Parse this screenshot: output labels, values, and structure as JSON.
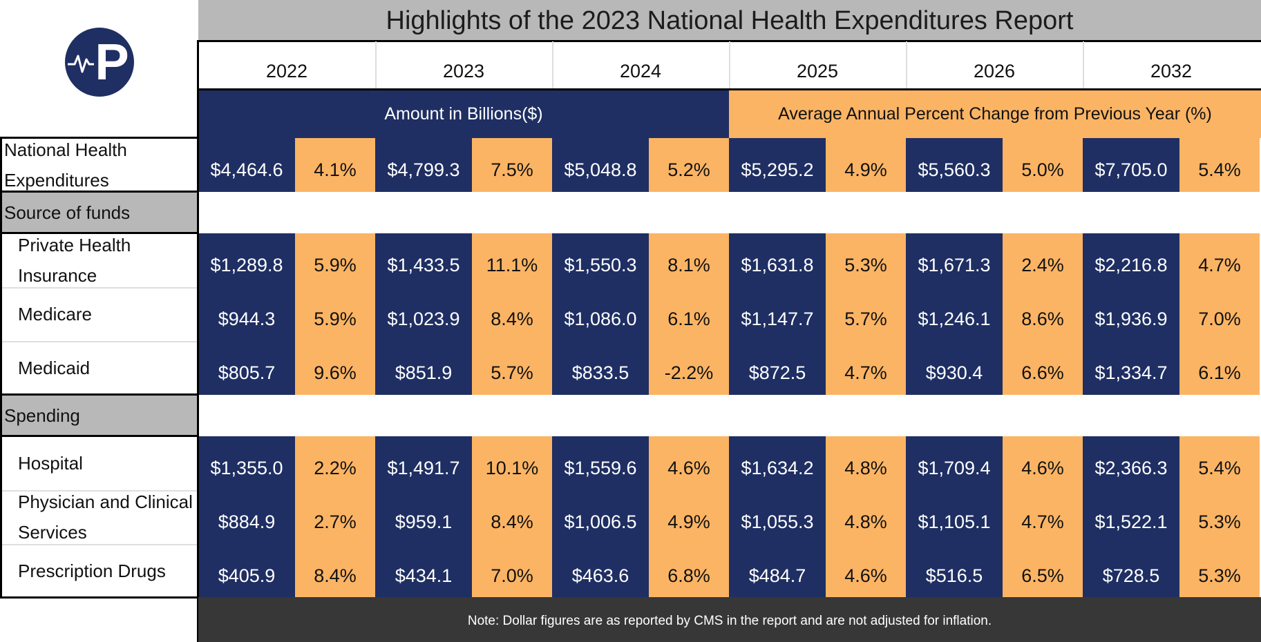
{
  "chart_data": {
    "type": "table",
    "title": "Highlights of the 2023 National Health Expenditures Report",
    "years": [
      "2022",
      "2023",
      "2024",
      "2025",
      "2026",
      "2032"
    ],
    "band_amount": "Amount in Billions($)",
    "band_change": "Average Annual Percent Change from Previous Year (%)",
    "rows": [
      {
        "label": "National Health Expenditures",
        "section": "",
        "amounts": [
          "$4,464.6",
          "$4,799.3",
          "$5,048.8",
          "$5,295.2",
          "$5,560.3",
          "$7,705.0"
        ],
        "changes": [
          "4.1%",
          "7.5%",
          "5.2%",
          "4.9%",
          "5.0%",
          "5.4%"
        ]
      },
      {
        "label": "Private Health Insurance",
        "section": "Source of funds",
        "amounts": [
          "$1,289.8",
          "$1,433.5",
          "$1,550.3",
          "$1,631.8",
          "$1,671.3",
          "$2,216.8"
        ],
        "changes": [
          "5.9%",
          "11.1%",
          "8.1%",
          "5.3%",
          "2.4%",
          "4.7%"
        ]
      },
      {
        "label": "Medicare",
        "section": "Source of funds",
        "amounts": [
          "$944.3",
          "$1,023.9",
          "$1,086.0",
          "$1,147.7",
          "$1,246.1",
          "$1,936.9"
        ],
        "changes": [
          "5.9%",
          "8.4%",
          "6.1%",
          "5.7%",
          "8.6%",
          "7.0%"
        ]
      },
      {
        "label": "Medicaid",
        "section": "Source of funds",
        "amounts": [
          "$805.7",
          "$851.9",
          "$833.5",
          "$872.5",
          "$930.4",
          "$1,334.7"
        ],
        "changes": [
          "9.6%",
          "5.7%",
          "-2.2%",
          "4.7%",
          "6.6%",
          "6.1%"
        ]
      },
      {
        "label": "Hospital",
        "section": "Spending",
        "amounts": [
          "$1,355.0",
          "$1,491.7",
          "$1,559.6",
          "$1,634.2",
          "$1,709.4",
          "$2,366.3"
        ],
        "changes": [
          "2.2%",
          "10.1%",
          "4.6%",
          "4.8%",
          "4.6%",
          "5.4%"
        ]
      },
      {
        "label": "Physician and Clinical Services",
        "section": "Spending",
        "amounts": [
          "$884.9",
          "$959.1",
          "$1,006.5",
          "$1,055.3",
          "$1,105.1",
          "$1,522.1"
        ],
        "changes": [
          "2.7%",
          "8.4%",
          "4.9%",
          "4.8%",
          "4.7%",
          "5.3%"
        ]
      },
      {
        "label": "Prescription Drugs",
        "section": "Spending",
        "amounts": [
          "$405.9",
          "$434.1",
          "$463.6",
          "$484.7",
          "$516.5",
          "$728.5"
        ],
        "changes": [
          "8.4%",
          "7.0%",
          "6.8%",
          "4.6%",
          "6.5%",
          "5.3%"
        ]
      }
    ],
    "sections": [
      "Source of funds",
      "Spending"
    ],
    "note": "Note: Dollar figures are as reported by CMS in the report and are not adjusted for inflation."
  },
  "logo": {
    "letter": "P",
    "icon": "heartbeat-p-logo",
    "color": "#1f2f63"
  },
  "colors": {
    "navy": "#1f2f63",
    "orange": "#fbb464",
    "gray": "#b7b8b7",
    "note_bg": "#373737"
  }
}
